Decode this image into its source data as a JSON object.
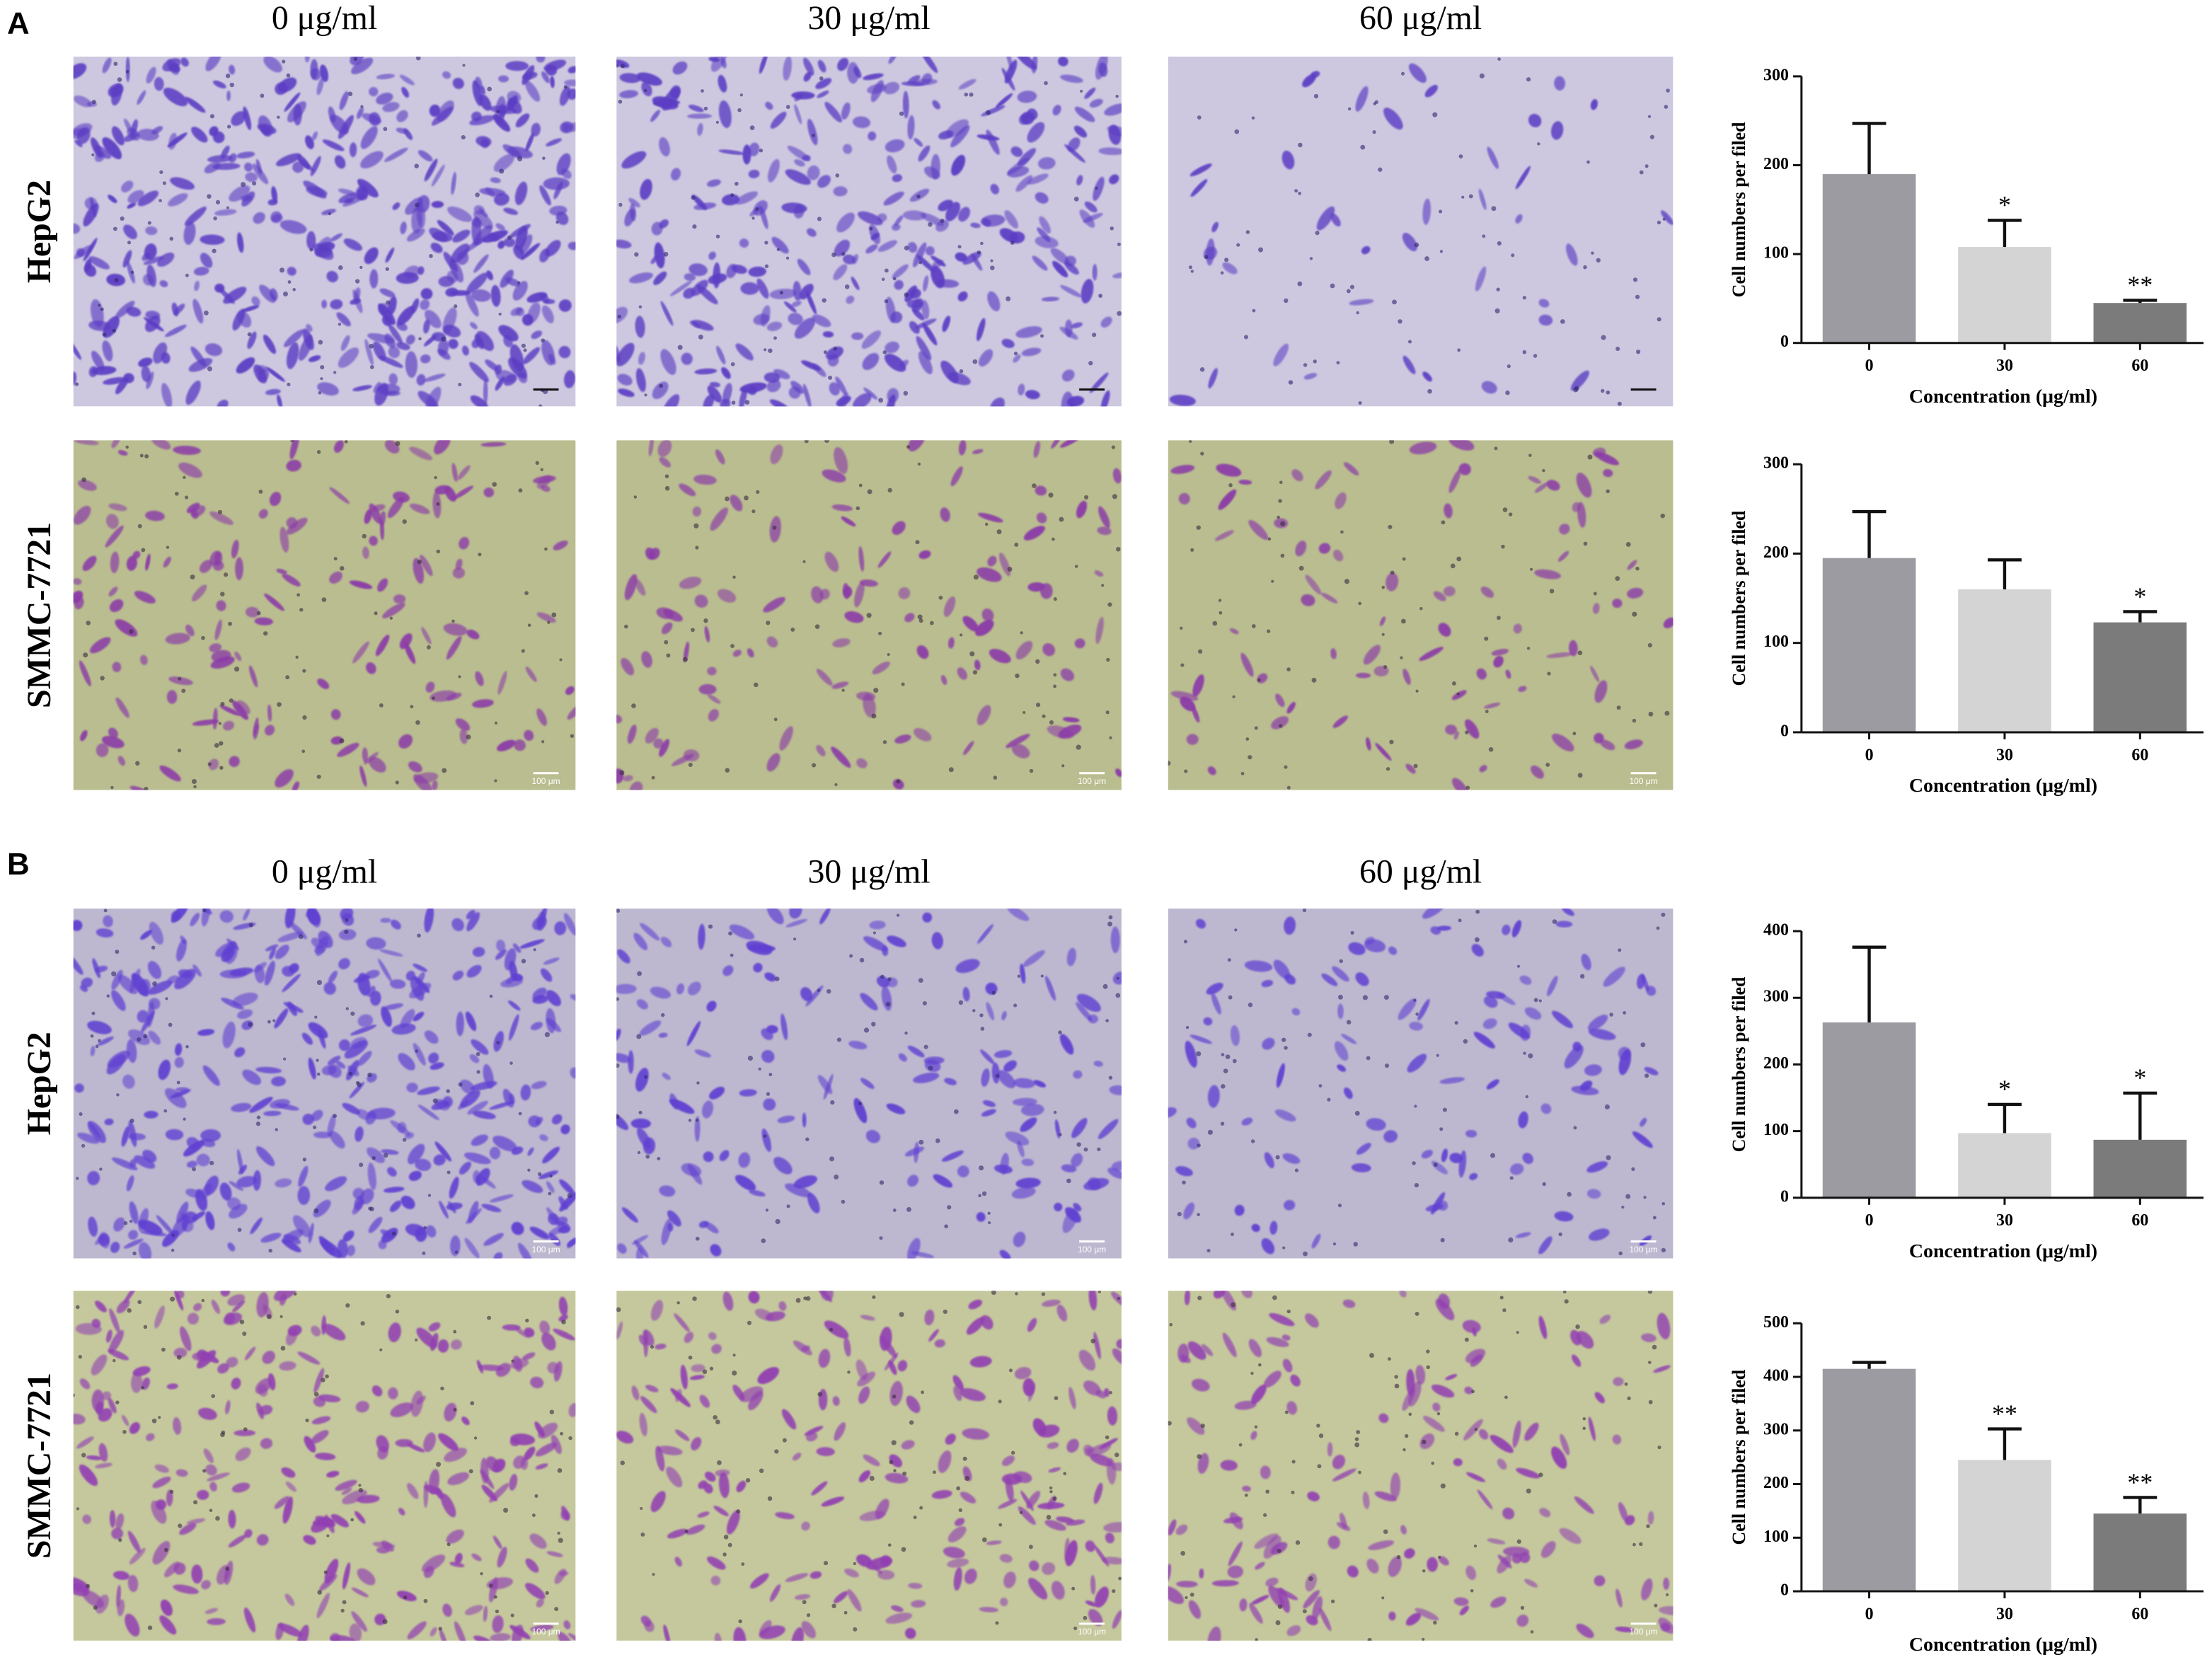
{
  "figure": {
    "panels": [
      "A",
      "B"
    ],
    "columns": [
      "0 μg/ml",
      "30 μg/ml",
      "60 μg/ml"
    ],
    "rows": [
      "HepG2",
      "SMMC-7721"
    ],
    "scale_label": "100 μm"
  },
  "chart_data": [
    {
      "type": "bar",
      "categories": [
        "0",
        "30",
        "60"
      ],
      "values": [
        190,
        108,
        45
      ],
      "errors": [
        57,
        30,
        3
      ],
      "annotations": [
        null,
        "*",
        "**"
      ],
      "colors": [
        "#9b9ba1",
        "#d4d4d4",
        "#7b7b7b"
      ],
      "ylim": [
        0,
        300
      ],
      "yticks": [
        0,
        100,
        200,
        300
      ],
      "ylabel": "Cell numbers per filed",
      "xlabel": "Concentration (μg/ml)"
    },
    {
      "type": "bar",
      "categories": [
        "0",
        "30",
        "60"
      ],
      "values": [
        195,
        160,
        123
      ],
      "errors": [
        52,
        33,
        12
      ],
      "annotations": [
        null,
        null,
        "*"
      ],
      "colors": [
        "#9b9ba1",
        "#d4d4d4",
        "#7b7b7b"
      ],
      "ylim": [
        0,
        300
      ],
      "yticks": [
        0,
        100,
        200,
        300
      ],
      "ylabel": "Cell numbers per filed",
      "xlabel": "Concentration (μg/ml)"
    },
    {
      "type": "bar",
      "categories": [
        "0",
        "30",
        "60"
      ],
      "values": [
        263,
        97,
        87
      ],
      "errors": [
        113,
        43,
        70
      ],
      "annotations": [
        null,
        "*",
        "*"
      ],
      "colors": [
        "#9b9ba1",
        "#d4d4d4",
        "#7b7b7b"
      ],
      "ylim": [
        0,
        400
      ],
      "yticks": [
        0,
        100,
        200,
        300,
        400
      ],
      "ylabel": "Cell numbers per filed",
      "xlabel": "Concentration (μg/ml)"
    },
    {
      "type": "bar",
      "categories": [
        "0",
        "30",
        "60"
      ],
      "values": [
        415,
        245,
        145
      ],
      "errors": [
        12,
        58,
        30
      ],
      "annotations": [
        null,
        "**",
        "**"
      ],
      "colors": [
        "#9b9ba1",
        "#d4d4d4",
        "#7b7b7b"
      ],
      "ylim": [
        0,
        500
      ],
      "yticks": [
        0,
        100,
        200,
        300,
        400,
        500
      ],
      "ylabel": "Cell numbers per filed",
      "xlabel": "Concentration (μg/ml)"
    }
  ]
}
